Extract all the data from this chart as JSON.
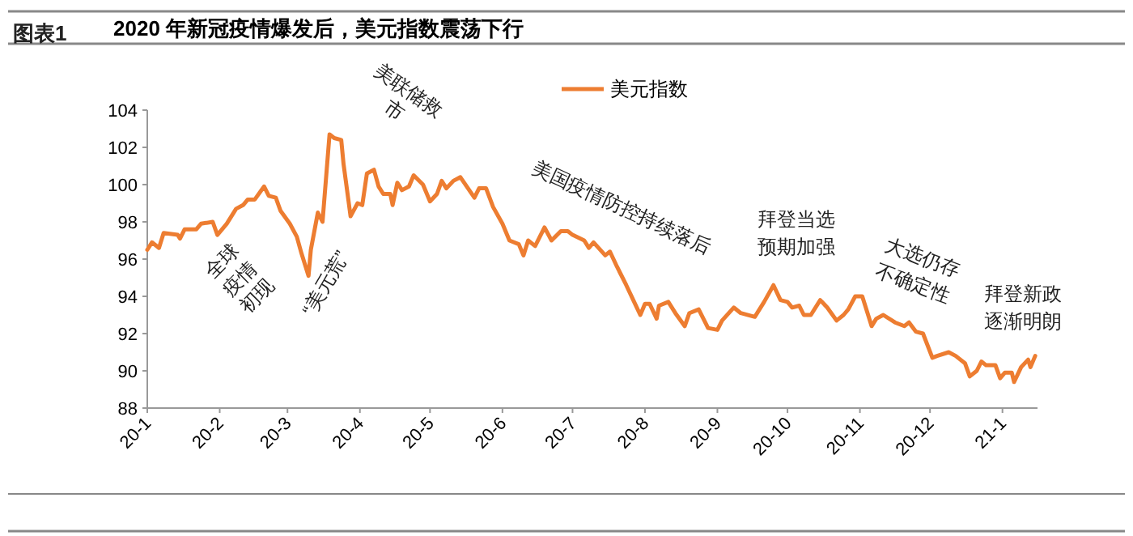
{
  "chart_data": {
    "type": "line",
    "title": "2020 年新冠疫情爆发后，美元指数震荡下行",
    "annotations": [
      "图表1",
      "全球疫情初现",
      "“美元荒”",
      "美联储救市",
      "美国疫情防控持续落后",
      "拜登当选预期加强",
      "大选仍存不确定性",
      "拜登新政逐渐明朗"
    ],
    "xlim": [
      "2020-01-01",
      "2021-01-16"
    ],
    "xticks": [
      {
        "value": "2020-01-01",
        "label": "20-1"
      },
      {
        "value": "2020-02-01",
        "label": "20-2"
      },
      {
        "value": "2020-03-01",
        "label": "20-3"
      },
      {
        "value": "2020-04-01",
        "label": "20-4"
      },
      {
        "value": "2020-05-01",
        "label": "20-5"
      },
      {
        "value": "2020-06-01",
        "label": "20-6"
      },
      {
        "value": "2020-07-01",
        "label": "20-7"
      },
      {
        "value": "2020-08-01",
        "label": "20-8"
      },
      {
        "value": "2020-09-01",
        "label": "20-9"
      },
      {
        "value": "2020-10-01",
        "label": "20-10"
      },
      {
        "value": "2020-11-01",
        "label": "20-11"
      },
      {
        "value": "2020-12-01",
        "label": "20-12"
      },
      {
        "value": "2021-01-01",
        "label": "21-1"
      }
    ],
    "ylim": [
      88,
      104
    ],
    "yticks": [
      88,
      90,
      92,
      94,
      96,
      98,
      100,
      102,
      104
    ],
    "legend": "top",
    "x": [
      "2020-01-01",
      "2020-01-03",
      "2020-01-06",
      "2020-01-08",
      "2020-01-14",
      "2020-01-15",
      "2020-01-17",
      "2020-01-22",
      "2020-01-24",
      "2020-01-29",
      "2020-01-31",
      "2020-02-04",
      "2020-02-08",
      "2020-02-11",
      "2020-02-13",
      "2020-02-16",
      "2020-02-20",
      "2020-02-22",
      "2020-02-25",
      "2020-02-27",
      "2020-03-02",
      "2020-03-05",
      "2020-03-07",
      "2020-03-10",
      "2020-03-11",
      "2020-03-14",
      "2020-03-16",
      "2020-03-19",
      "2020-03-21",
      "2020-03-24",
      "2020-03-25",
      "2020-03-28",
      "2020-03-31",
      "2020-04-02",
      "2020-04-04",
      "2020-04-07",
      "2020-04-09",
      "2020-04-11",
      "2020-04-14",
      "2020-04-15",
      "2020-04-17",
      "2020-04-19",
      "2020-04-22",
      "2020-04-24",
      "2020-04-28",
      "2020-05-01",
      "2020-05-04",
      "2020-05-06",
      "2020-05-08",
      "2020-05-11",
      "2020-05-14",
      "2020-05-20",
      "2020-05-22",
      "2020-05-25",
      "2020-05-28",
      "2020-06-01",
      "2020-06-04",
      "2020-06-08",
      "2020-06-10",
      "2020-06-12",
      "2020-06-15",
      "2020-06-19",
      "2020-06-22",
      "2020-06-26",
      "2020-06-29",
      "2020-07-01",
      "2020-07-06",
      "2020-07-08",
      "2020-07-10",
      "2020-07-15",
      "2020-07-17",
      "2020-07-20",
      "2020-07-24",
      "2020-07-27",
      "2020-07-30",
      "2020-08-01",
      "2020-08-03",
      "2020-08-06",
      "2020-08-07",
      "2020-08-11",
      "2020-08-14",
      "2020-08-18",
      "2020-08-20",
      "2020-08-24",
      "2020-08-26",
      "2020-08-28",
      "2020-09-01",
      "2020-09-03",
      "2020-09-08",
      "2020-09-11",
      "2020-09-17",
      "2020-09-21",
      "2020-09-25",
      "2020-09-28",
      "2020-10-01",
      "2020-10-03",
      "2020-10-06",
      "2020-10-08",
      "2020-10-11",
      "2020-10-15",
      "2020-10-18",
      "2020-10-22",
      "2020-10-25",
      "2020-10-27",
      "2020-10-30",
      "2020-11-02",
      "2020-11-06",
      "2020-11-08",
      "2020-11-11",
      "2020-11-16",
      "2020-11-20",
      "2020-11-22",
      "2020-11-25",
      "2020-11-28",
      "2020-12-02",
      "2020-12-04",
      "2020-12-09",
      "2020-12-12",
      "2020-12-16",
      "2020-12-18",
      "2020-12-21",
      "2020-12-23",
      "2020-12-25",
      "2020-12-29",
      "2020-12-31",
      "2021-01-02",
      "2021-01-05",
      "2021-01-06",
      "2021-01-09",
      "2021-01-12",
      "2021-01-13",
      "2021-01-15"
    ],
    "series": [
      {
        "name": "美元指数",
        "color": "#ed7d31",
        "values": [
          96.5,
          96.9,
          96.6,
          97.4,
          97.3,
          97.1,
          97.6,
          97.6,
          97.9,
          98.0,
          97.3,
          97.9,
          98.7,
          98.9,
          99.2,
          99.2,
          99.9,
          99.4,
          99.3,
          98.6,
          97.9,
          97.2,
          96.3,
          95.1,
          96.5,
          98.5,
          98.0,
          102.7,
          102.5,
          102.4,
          101.1,
          98.3,
          99.0,
          98.9,
          100.6,
          100.8,
          99.9,
          99.5,
          99.5,
          98.9,
          100.1,
          99.7,
          99.9,
          100.5,
          100.0,
          99.1,
          99.5,
          100.2,
          99.8,
          100.2,
          100.4,
          99.3,
          99.8,
          99.8,
          98.8,
          97.9,
          97.0,
          96.8,
          96.2,
          97.0,
          96.7,
          97.7,
          97.0,
          97.5,
          97.5,
          97.3,
          97.0,
          96.6,
          96.9,
          96.2,
          96.4,
          95.6,
          94.6,
          93.8,
          93.0,
          93.6,
          93.6,
          92.8,
          93.5,
          93.7,
          93.1,
          92.4,
          93.1,
          93.3,
          92.8,
          92.3,
          92.2,
          92.7,
          93.4,
          93.1,
          92.9,
          93.7,
          94.6,
          93.8,
          93.7,
          93.4,
          93.5,
          93.0,
          93.0,
          93.8,
          93.4,
          92.7,
          93.0,
          93.3,
          94.0,
          94.0,
          92.4,
          92.8,
          93.0,
          92.6,
          92.4,
          92.6,
          92.1,
          92.0,
          90.7,
          90.8,
          91.0,
          90.8,
          90.4,
          89.7,
          90.0,
          90.5,
          90.3,
          90.3,
          89.6,
          89.9,
          89.9,
          89.4,
          90.2,
          90.6,
          90.2,
          90.8
        ]
      }
    ]
  }
}
